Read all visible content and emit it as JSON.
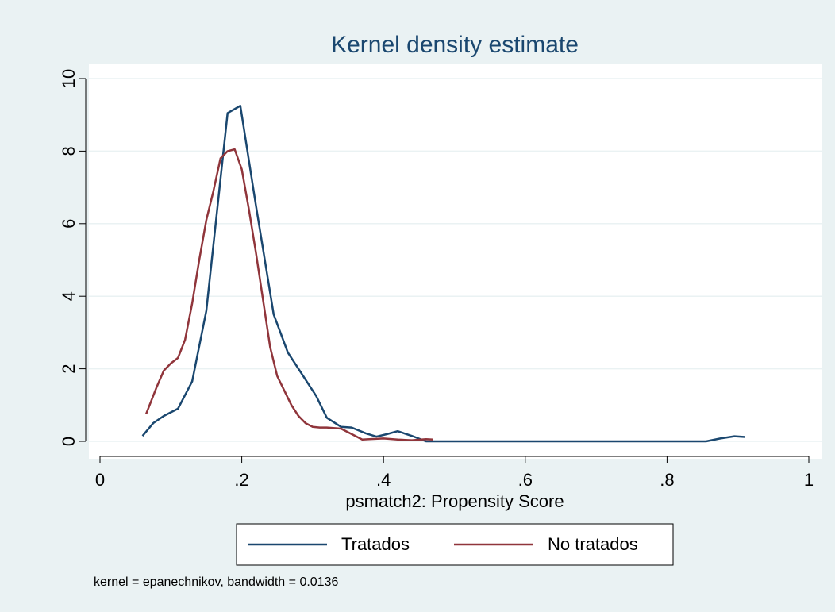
{
  "chart_data": {
    "type": "line",
    "title": "Kernel density estimate",
    "xlabel": "psmatch2: Propensity Score",
    "note": "kernel = epanechnikov, bandwidth = 0.0136",
    "legend": "bottom",
    "grid": true,
    "xlim": [
      0,
      1
    ],
    "xticks": [
      0,
      {
        "value": 0.2,
        "label": ".2"
      },
      {
        "value": 0.4,
        "label": ".4"
      },
      {
        "value": 0.6,
        "label": ".6"
      },
      {
        "value": 0.8,
        "label": ".8"
      },
      1
    ],
    "ylim": [
      0,
      10
    ],
    "yticks": [
      0,
      2,
      4,
      6,
      8,
      10
    ],
    "series": [
      {
        "name": "Tratados",
        "color": "#1a476f",
        "x": [
          0.06,
          0.075,
          0.09,
          0.11,
          0.13,
          0.15,
          0.18,
          0.198,
          0.22,
          0.245,
          0.265,
          0.285,
          0.305,
          0.32,
          0.34,
          0.355,
          0.375,
          0.39,
          0.405,
          0.42,
          0.44,
          0.46,
          0.5,
          0.6,
          0.7,
          0.8,
          0.855,
          0.875,
          0.895,
          0.91
        ],
        "values": [
          0.15,
          0.5,
          0.7,
          0.9,
          1.65,
          3.6,
          9.05,
          9.25,
          6.5,
          3.5,
          2.45,
          1.85,
          1.25,
          0.65,
          0.4,
          0.38,
          0.22,
          0.13,
          0.2,
          0.28,
          0.15,
          0,
          0,
          0,
          0,
          0,
          0,
          0.08,
          0.14,
          0.12
        ]
      },
      {
        "name": "No tratados",
        "color": "#90353b",
        "x": [
          0.065,
          0.08,
          0.09,
          0.1,
          0.11,
          0.12,
          0.13,
          0.14,
          0.15,
          0.16,
          0.17,
          0.18,
          0.19,
          0.2,
          0.21,
          0.22,
          0.23,
          0.24,
          0.25,
          0.26,
          0.27,
          0.28,
          0.29,
          0.3,
          0.31,
          0.32,
          0.34,
          0.36,
          0.37,
          0.38,
          0.4,
          0.42,
          0.44,
          0.46,
          0.47
        ],
        "values": [
          0.75,
          1.5,
          1.95,
          2.15,
          2.3,
          2.8,
          3.8,
          5.0,
          6.1,
          6.9,
          7.8,
          8.0,
          8.05,
          7.5,
          6.4,
          5.2,
          3.9,
          2.6,
          1.8,
          1.4,
          1.0,
          0.7,
          0.5,
          0.4,
          0.38,
          0.38,
          0.35,
          0.15,
          0.05,
          0.06,
          0.08,
          0.05,
          0.03,
          0.06,
          0.05
        ]
      }
    ]
  }
}
